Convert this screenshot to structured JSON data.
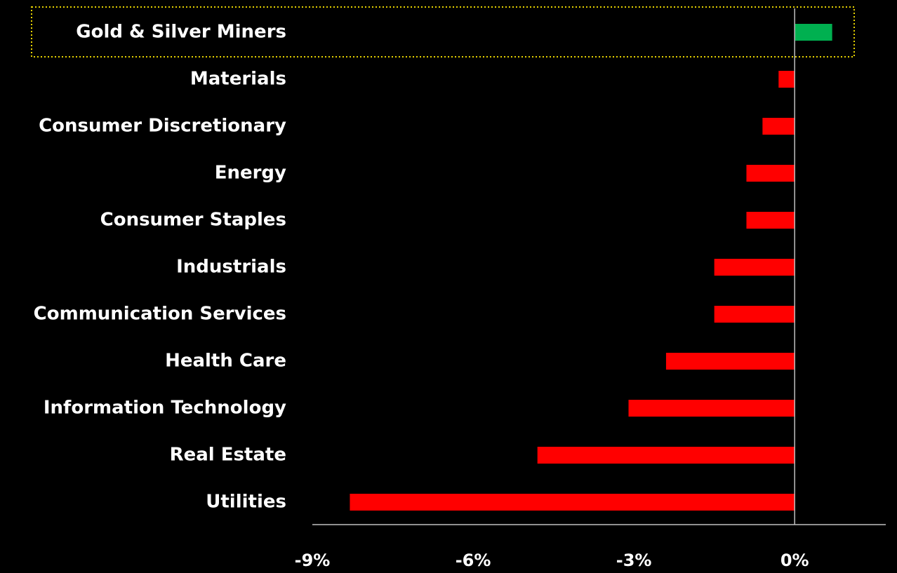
{
  "chart_data": {
    "type": "barh",
    "categories": [
      "Gold & Silver Miners",
      "Materials",
      "Consumer Discretionary",
      "Energy",
      "Consumer Staples",
      "Industrials",
      "Communication Services",
      "Health Care",
      "Information Technology",
      "Real Estate",
      "Utilities"
    ],
    "values": [
      0.7,
      -0.3,
      -0.6,
      -0.9,
      -0.9,
      -1.5,
      -1.5,
      -2.4,
      -3.1,
      -4.8,
      -8.3
    ],
    "positive_color": "#00b050",
    "negative_color": "#ff0000",
    "highlight_index": 0,
    "highlight_color": "#e6d200",
    "xlim": [
      -9,
      1.7
    ],
    "xticks": [
      {
        "value": -9,
        "label": "-9%"
      },
      {
        "value": -6,
        "label": "-6%"
      },
      {
        "value": -3,
        "label": "-3%"
      },
      {
        "value": 0,
        "label": "0%"
      }
    ],
    "grid": false
  }
}
